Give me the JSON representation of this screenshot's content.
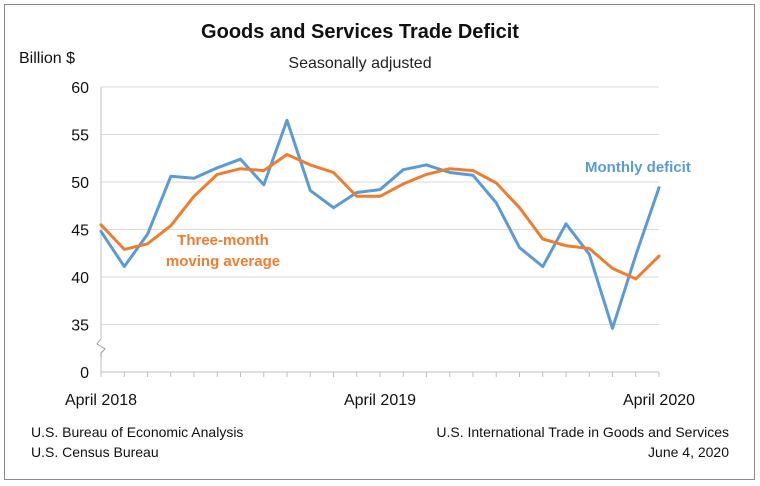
{
  "chart_data": {
    "type": "line",
    "title": "Goods and Services Trade Deficit",
    "subtitle": "Seasonally adjusted",
    "ylabel": "Billion $",
    "ylim": [
      30,
      60
    ],
    "y_ticks": [
      60,
      55,
      50,
      45,
      40,
      35
    ],
    "y_zero_label": "0",
    "y_axis_break": true,
    "x_tick_labels": [
      "April 2018",
      "April 2019",
      "April 2020"
    ],
    "x": [
      "Apr 2018",
      "May 2018",
      "Jun 2018",
      "Jul 2018",
      "Aug 2018",
      "Sep 2018",
      "Oct 2018",
      "Nov 2018",
      "Dec 2018",
      "Jan 2019",
      "Feb 2019",
      "Mar 2019",
      "Apr 2019",
      "May 2019",
      "Jun 2019",
      "Jul 2019",
      "Aug 2019",
      "Sep 2019",
      "Oct 2019",
      "Nov 2019",
      "Dec 2019",
      "Jan 2020",
      "Feb 2020",
      "Mar 2020",
      "Apr 2020"
    ],
    "series": [
      {
        "name": "Monthly deficit",
        "label": "Monthly deficit",
        "color": "#5b9bd5",
        "values": [
          44.8,
          41.1,
          44.5,
          50.6,
          50.4,
          51.5,
          52.4,
          49.7,
          56.5,
          49.1,
          47.3,
          48.9,
          49.2,
          51.3,
          51.8,
          51.0,
          50.7,
          47.8,
          43.1,
          41.1,
          45.6,
          42.4,
          34.6,
          42.3,
          49.4
        ]
      },
      {
        "name": "Three-month moving average",
        "label": [
          "Three-month",
          "moving average"
        ],
        "color": "#ed7d31",
        "values": [
          45.5,
          42.9,
          43.5,
          45.4,
          48.5,
          50.8,
          51.4,
          51.2,
          52.9,
          51.8,
          51.0,
          48.5,
          48.5,
          49.8,
          50.8,
          51.4,
          51.2,
          49.9,
          47.3,
          44.0,
          43.3,
          43.0,
          40.9,
          39.8,
          42.2
        ]
      }
    ],
    "legend": "inline labels",
    "grid": true
  },
  "footer": {
    "source_left_1": "U.S. Bureau of Economic Analysis",
    "source_left_2": "U.S. Census Bureau",
    "source_right_1": "U.S. International Trade in Goods and Services",
    "source_right_2": "June 4, 2020"
  }
}
